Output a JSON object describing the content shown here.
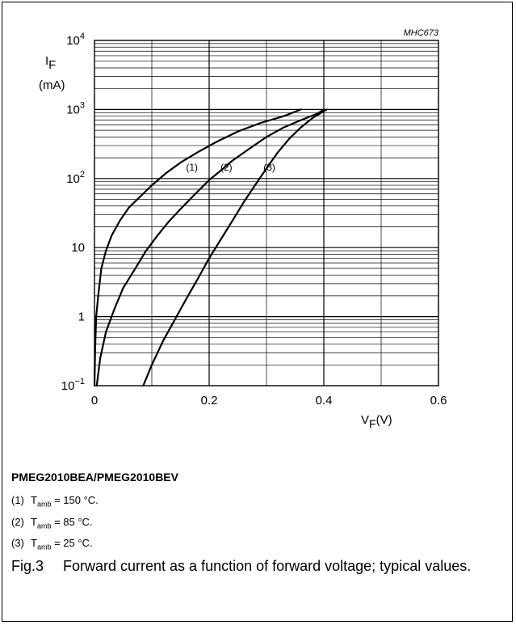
{
  "chart_data": {
    "type": "line",
    "code": "MHC673",
    "ylabel_symbol": "I",
    "ylabel_sub": "F",
    "ylabel_unit": "(mA)",
    "xlabel_symbol": "V",
    "xlabel_sub": "F",
    "xlabel_unit": "(V)",
    "y_scale": "log",
    "ylim": [
      0.1,
      10000
    ],
    "xlim": [
      0,
      0.6
    ],
    "grid": true,
    "x_ticks": [
      "0",
      "0.2",
      "0.4",
      "0.6"
    ],
    "x_tick_values": [
      0,
      0.2,
      0.4,
      0.6
    ],
    "y_ticks": [
      {
        "base": "10",
        "exp": "4",
        "value": 10000
      },
      {
        "base": "10",
        "exp": "3",
        "value": 1000
      },
      {
        "base": "10",
        "exp": "2",
        "value": 100
      },
      {
        "base": "10",
        "exp": "",
        "value": 10
      },
      {
        "base": "1",
        "exp": "",
        "value": 1
      },
      {
        "base": "10",
        "exp": "−1",
        "value": 0.1
      }
    ],
    "series": [
      {
        "name": "(1)",
        "label_at": [
          0.17,
          130
        ],
        "x": [
          0.0,
          0.001,
          0.003,
          0.007,
          0.012,
          0.02,
          0.03,
          0.045,
          0.06,
          0.08,
          0.1,
          0.125,
          0.15,
          0.18,
          0.21,
          0.25,
          0.29,
          0.33,
          0.36
        ],
        "y": [
          0.1,
          0.3,
          1.0,
          2.2,
          5,
          9,
          15,
          25,
          38,
          55,
          80,
          120,
          170,
          240,
          330,
          480,
          640,
          800,
          1000
        ]
      },
      {
        "name": "(2)",
        "label_at": [
          0.23,
          130
        ],
        "x": [
          0.004,
          0.01,
          0.02,
          0.035,
          0.05,
          0.07,
          0.09,
          0.11,
          0.13,
          0.155,
          0.18,
          0.2,
          0.22,
          0.24,
          0.27,
          0.3,
          0.33,
          0.36,
          0.39,
          0.4
        ],
        "y": [
          0.1,
          0.25,
          0.6,
          1.3,
          2.6,
          4.8,
          9,
          15,
          24,
          40,
          65,
          95,
          130,
          180,
          270,
          400,
          550,
          700,
          880,
          1000
        ]
      },
      {
        "name": "(3)",
        "label_at": [
          0.305,
          130
        ],
        "x": [
          0.085,
          0.1,
          0.12,
          0.14,
          0.16,
          0.18,
          0.2,
          0.22,
          0.24,
          0.26,
          0.28,
          0.3,
          0.32,
          0.34,
          0.36,
          0.38,
          0.405
        ],
        "y": [
          0.1,
          0.2,
          0.45,
          0.9,
          1.8,
          3.5,
          7,
          13,
          24,
          45,
          80,
          140,
          240,
          380,
          550,
          750,
          1000
        ]
      }
    ]
  },
  "legend": {
    "device": "PMEG2010BEA/PMEG2010BEV",
    "items": [
      {
        "num": "(1)",
        "sym": "T",
        "sub": "amb",
        "rest": " = 150 °C."
      },
      {
        "num": "(2)",
        "sym": "T",
        "sub": "amb",
        "rest": " = 85 °C."
      },
      {
        "num": "(3)",
        "sym": "T",
        "sub": "amb",
        "rest": " = 25 °C."
      }
    ]
  },
  "caption": {
    "fig": "Fig.3",
    "text": "Forward current as a function of forward voltage; typical values."
  }
}
